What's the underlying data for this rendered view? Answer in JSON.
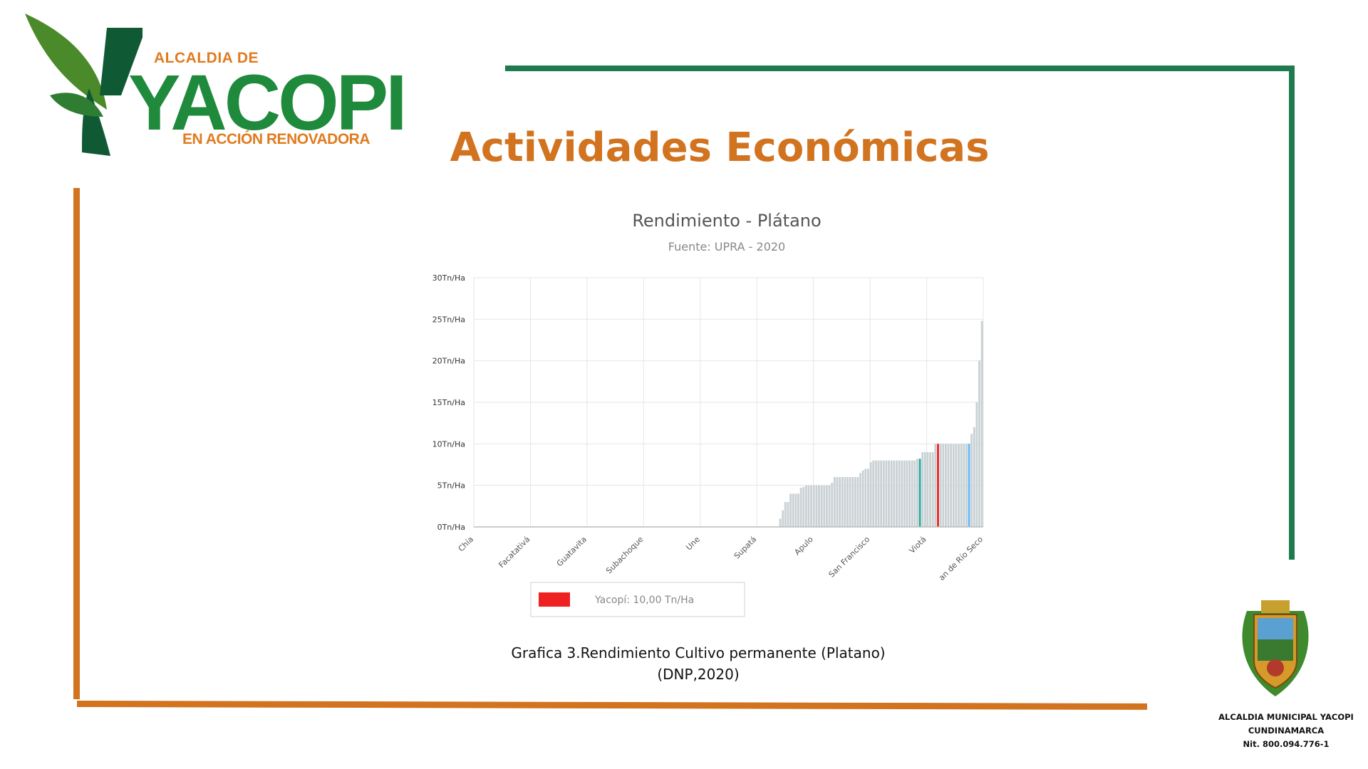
{
  "logo": {
    "top_text": "ALCALDIA DE",
    "main_text": "YACOPI",
    "sub_text": "EN ACCIÓN RENOVADORA"
  },
  "slide": {
    "title": "Actividades Económicas"
  },
  "caption": {
    "line1": "Grafica 3.Rendimiento Cultivo permanente (Platano)",
    "line2": "(DNP,2020)"
  },
  "seal": {
    "line1": "ALCALDIA MUNICIPAL YACOPI",
    "line2": "CUNDINAMARCA",
    "line3": "Nit. 800.094.776-1"
  },
  "colors": {
    "green": "#1f7a4f",
    "orange": "#d2731f",
    "bar_default": "#c9d1d4",
    "bar_highlight": "#ee2222",
    "bar_teal": "#26a69a",
    "bar_blue": "#64b5f6"
  },
  "chart_data": {
    "type": "bar",
    "title": "Rendimiento - Plátano",
    "subtitle": "Fuente: UPRA - 2020",
    "ylim": [
      0,
      30
    ],
    "yticks": [
      0,
      5,
      10,
      15,
      20,
      25,
      30
    ],
    "ytick_labels": [
      "0Tn/Ha",
      "5Tn/Ha",
      "10Tn/Ha",
      "15Tn/Ha",
      "20Tn/Ha",
      "25Tn/Ha",
      "30Tn/Ha"
    ],
    "x_labels": [
      "Chía",
      "Facatativá",
      "Guatavita",
      "Subachoque",
      "Une",
      "Supatá",
      "Apulo",
      "San Francisco",
      "Viotá",
      "an de Río Seco"
    ],
    "grid": true,
    "legend": {
      "position": "bottom-left",
      "label": "Yacopí:  10,00 Tn/Ha",
      "color": "#ee2222"
    },
    "highlight": "Yacopí",
    "highlight_value": 10,
    "values": [
      0,
      0,
      0,
      0,
      0,
      0,
      0,
      0,
      0,
      0,
      0,
      0,
      0,
      0,
      0,
      0,
      0,
      0,
      0,
      0,
      0,
      0,
      0,
      0,
      0,
      0,
      0,
      0,
      0,
      0,
      0,
      0,
      0,
      0,
      0,
      0,
      0,
      0,
      0,
      0,
      0,
      0,
      0,
      0,
      0,
      0,
      0,
      0,
      0,
      0,
      0,
      0,
      0,
      0,
      0,
      0,
      0,
      0,
      0,
      0,
      0,
      0,
      0,
      0,
      0,
      0,
      0,
      0,
      0,
      0,
      0,
      0,
      0,
      0,
      0,
      0,
      0,
      0,
      0,
      0,
      0,
      0,
      0,
      0,
      0,
      0,
      0,
      0,
      0,
      0,
      0,
      0,
      0,
      0,
      0,
      0,
      0,
      0,
      0,
      0,
      0,
      0,
      0,
      0,
      0,
      0,
      0,
      0,
      0,
      0,
      0,
      0,
      0,
      0,
      0,
      0,
      0,
      0,
      1,
      2,
      3,
      3,
      4,
      4,
      4,
      4,
      4.7,
      4.8,
      5,
      5,
      5,
      5,
      5,
      5,
      5,
      5,
      5,
      5,
      5.3,
      6,
      6,
      6,
      6,
      6,
      6,
      6,
      6,
      6,
      6,
      6.5,
      6.8,
      7,
      7,
      7.8,
      8,
      8,
      8,
      8,
      8,
      8,
      8,
      8,
      8,
      8,
      8,
      8,
      8,
      8,
      8,
      8,
      8,
      8.2,
      8.2,
      9,
      9,
      9,
      9,
      9,
      10,
      10,
      10,
      10,
      10,
      10,
      10,
      10,
      10,
      10,
      10,
      10,
      10,
      10,
      11.2,
      12,
      15,
      20,
      24.8
    ]
  }
}
